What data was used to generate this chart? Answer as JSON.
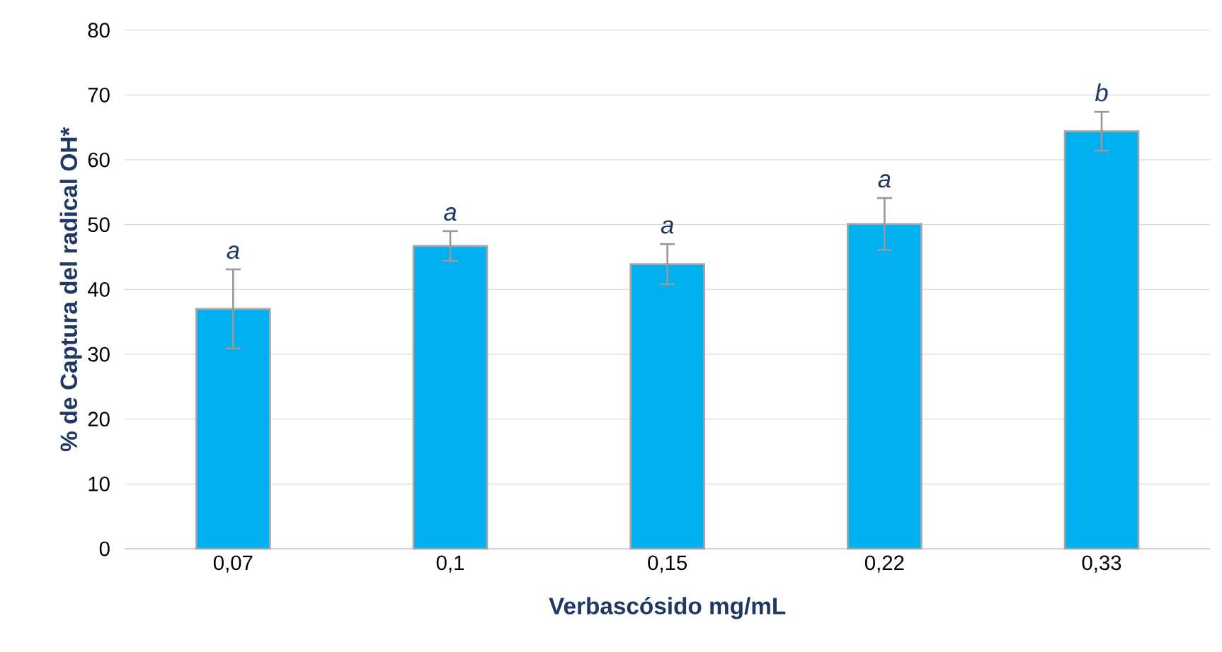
{
  "chart_data": {
    "type": "bar",
    "xlabel": "Verbascósido mg/mL",
    "ylabel": "% de Captura del radical OH*",
    "categories": [
      "0,07",
      "0,1",
      "0,15",
      "0,22",
      "0,33"
    ],
    "values": [
      37.0,
      46.7,
      43.9,
      50.1,
      64.4
    ],
    "errors": [
      6.1,
      2.3,
      3.1,
      4.0,
      3.0
    ],
    "color": "#00b0f0",
    "ylim": [
      0,
      80
    ],
    "yticks": [
      0,
      10,
      20,
      30,
      40,
      50,
      60,
      70,
      80
    ],
    "grid": "y",
    "annotations": [
      "a",
      "a",
      "a",
      "a",
      "b"
    ]
  }
}
